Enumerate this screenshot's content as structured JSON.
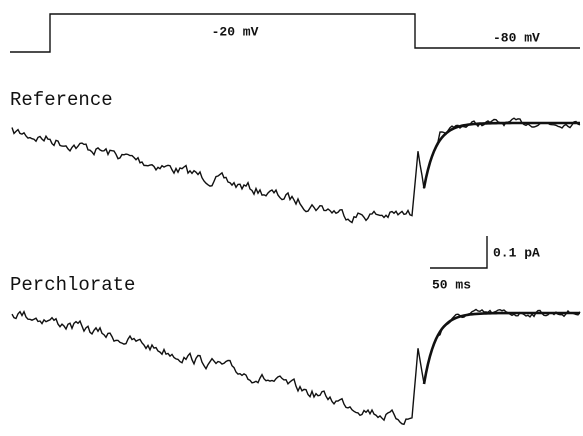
{
  "protocol": {
    "step_label": "-20 mV",
    "hold_label": "-80 mV"
  },
  "traces": [
    {
      "label": "Reference"
    },
    {
      "label": "Perchlorate"
    }
  ],
  "scale_bar": {
    "current_label": "0.1 pA",
    "time_label": "50 ms"
  }
}
